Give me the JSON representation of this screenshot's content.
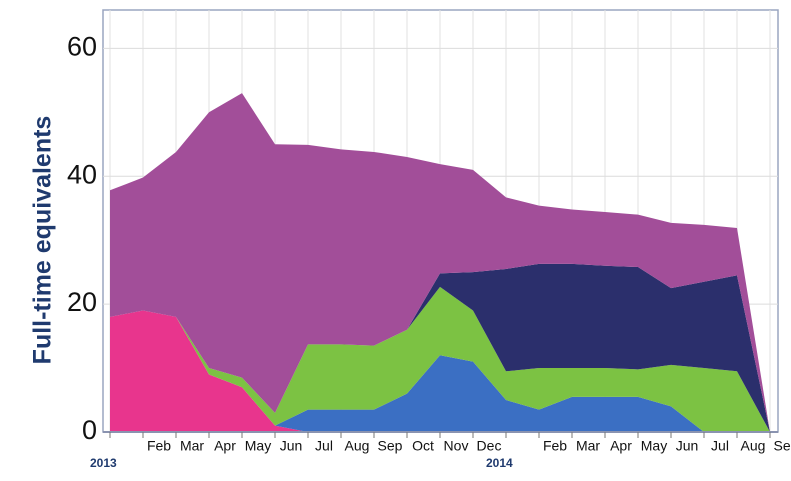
{
  "chart_data": {
    "type": "stacked_area",
    "y_label": "Full-time equivalents",
    "categories": [
      "2013",
      "Feb",
      "Mar",
      "Apr",
      "May",
      "Jun",
      "Jul",
      "Aug",
      "Sep",
      "Oct",
      "Nov",
      "Dec",
      "2014",
      "Feb",
      "Mar",
      "Apr",
      "May",
      "Jun",
      "Jul",
      "Aug",
      "Sep"
    ],
    "ylim": [
      0,
      66
    ],
    "yticks": [
      0,
      20,
      40,
      60
    ],
    "grid": true,
    "series": [
      {
        "name": "Pink",
        "color": "#e8358d",
        "values": [
          18,
          19,
          18,
          9,
          7,
          1,
          0,
          0,
          0,
          0,
          0,
          0,
          0,
          0,
          0,
          0,
          0,
          0,
          0,
          0,
          0
        ]
      },
      {
        "name": "Blue",
        "color": "#3b6fc3",
        "values": [
          0,
          0,
          0,
          0,
          0,
          0,
          3.5,
          3.5,
          3.5,
          6,
          12,
          11,
          5,
          3.5,
          5.5,
          5.5,
          5.5,
          4,
          0,
          0,
          0
        ]
      },
      {
        "name": "Green",
        "color": "#7cc243",
        "values": [
          0,
          0,
          0,
          1,
          1.5,
          2,
          10.2,
          10.2,
          10,
          10,
          10.7,
          8,
          4.5,
          6.5,
          4.5,
          4.5,
          4.3,
          6.5,
          10,
          9.5,
          0
        ]
      },
      {
        "name": "Navy",
        "color": "#2b2f6c",
        "values": [
          0,
          0,
          0,
          0,
          0,
          0,
          0,
          0,
          0,
          0,
          2.1,
          6,
          16,
          16.3,
          16.3,
          16,
          16,
          12,
          13.5,
          15,
          0
        ]
      },
      {
        "name": "Purple",
        "color": "#a24e99",
        "values": [
          19.8,
          20.8,
          25.8,
          40,
          44.5,
          42,
          31.2,
          30.5,
          30.3,
          27,
          17.1,
          16,
          11.2,
          9.1,
          8.5,
          8.4,
          8.2,
          10.2,
          8.9,
          7.4,
          0
        ]
      }
    ]
  }
}
